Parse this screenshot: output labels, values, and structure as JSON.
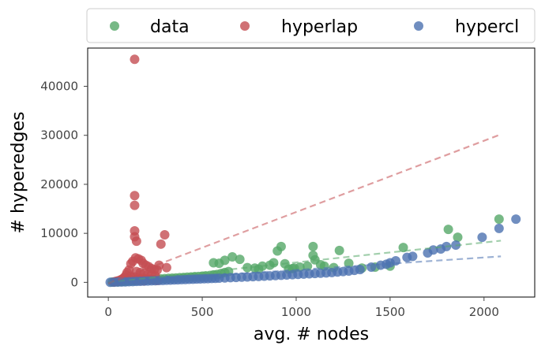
{
  "chart_data": {
    "type": "scatter",
    "xlabel": "avg. # nodes",
    "ylabel": "# hyperedges",
    "xlim": [
      -110,
      2270
    ],
    "ylim": [
      -3000,
      47800
    ],
    "xticks": [
      0,
      500,
      1000,
      1500,
      2000
    ],
    "yticks": [
      0,
      10000,
      20000,
      30000,
      40000
    ],
    "grid": false,
    "legend": {
      "placement": "top, outside plot",
      "columns": 3
    },
    "series": [
      {
        "name": "data",
        "color": "#55a868",
        "trend": [
          [
            0,
            0
          ],
          [
            2090,
            8500
          ]
        ],
        "points": [
          [
            20,
            50
          ],
          [
            35,
            90
          ],
          [
            50,
            120
          ],
          [
            60,
            150
          ],
          [
            75,
            180
          ],
          [
            90,
            220
          ],
          [
            105,
            260
          ],
          [
            120,
            300
          ],
          [
            135,
            320
          ],
          [
            150,
            380
          ],
          [
            165,
            420
          ],
          [
            180,
            460
          ],
          [
            195,
            500
          ],
          [
            210,
            540
          ],
          [
            225,
            600
          ],
          [
            240,
            620
          ],
          [
            260,
            680
          ],
          [
            280,
            700
          ],
          [
            300,
            760
          ],
          [
            320,
            820
          ],
          [
            340,
            850
          ],
          [
            360,
            900
          ],
          [
            380,
            950
          ],
          [
            400,
            1000
          ],
          [
            420,
            1050
          ],
          [
            440,
            1100
          ],
          [
            460,
            1150
          ],
          [
            480,
            1200
          ],
          [
            500,
            1250
          ],
          [
            520,
            1300
          ],
          [
            540,
            1400
          ],
          [
            560,
            1500
          ],
          [
            580,
            1600
          ],
          [
            600,
            1800
          ],
          [
            620,
            2000
          ],
          [
            640,
            2200
          ],
          [
            560,
            4000
          ],
          [
            590,
            3900
          ],
          [
            620,
            4500
          ],
          [
            660,
            5200
          ],
          [
            700,
            4700
          ],
          [
            740,
            3000
          ],
          [
            780,
            2900
          ],
          [
            800,
            2700
          ],
          [
            820,
            3300
          ],
          [
            860,
            3500
          ],
          [
            880,
            4000
          ],
          [
            900,
            6400
          ],
          [
            920,
            7300
          ],
          [
            940,
            3800
          ],
          [
            960,
            2700
          ],
          [
            990,
            2900
          ],
          [
            1020,
            3100
          ],
          [
            1060,
            3300
          ],
          [
            1090,
            5500
          ],
          [
            1090,
            7300
          ],
          [
            1100,
            4600
          ],
          [
            1130,
            3600
          ],
          [
            1150,
            3300
          ],
          [
            1230,
            6500
          ],
          [
            1280,
            3900
          ],
          [
            1350,
            2900
          ],
          [
            1570,
            7100
          ],
          [
            1810,
            10800
          ],
          [
            1860,
            9200
          ],
          [
            2080,
            12900
          ],
          [
            1500,
            3300
          ],
          [
            1420,
            3100
          ],
          [
            1200,
            3000
          ],
          [
            980,
            2800
          ]
        ]
      },
      {
        "name": "hyperlap",
        "color": "#c44e52",
        "trend": [
          [
            0,
            -200
          ],
          [
            2090,
            30200
          ]
        ],
        "points": [
          [
            140,
            45500
          ],
          [
            140,
            17700
          ],
          [
            140,
            15700
          ],
          [
            140,
            10500
          ],
          [
            140,
            9300
          ],
          [
            150,
            8400
          ],
          [
            300,
            9700
          ],
          [
            280,
            7800
          ],
          [
            310,
            3000
          ],
          [
            270,
            3500
          ],
          [
            120,
            3800
          ],
          [
            130,
            4300
          ],
          [
            145,
            5000
          ],
          [
            160,
            4800
          ],
          [
            175,
            4500
          ],
          [
            185,
            3900
          ],
          [
            200,
            3500
          ],
          [
            215,
            3200
          ],
          [
            230,
            2800
          ],
          [
            245,
            2600
          ],
          [
            260,
            2500
          ],
          [
            110,
            2500
          ],
          [
            100,
            2000
          ],
          [
            95,
            1500
          ],
          [
            85,
            1000
          ],
          [
            80,
            800
          ],
          [
            70,
            600
          ],
          [
            60,
            400
          ],
          [
            50,
            300
          ],
          [
            40,
            200
          ],
          [
            30,
            100
          ],
          [
            150,
            2200
          ],
          [
            170,
            2000
          ],
          [
            190,
            1800
          ],
          [
            210,
            1600
          ],
          [
            230,
            1500
          ],
          [
            250,
            1300
          ],
          [
            120,
            1200
          ],
          [
            140,
            1100
          ],
          [
            160,
            900
          ],
          [
            180,
            800
          ],
          [
            200,
            700
          ],
          [
            220,
            600
          ],
          [
            240,
            500
          ],
          [
            260,
            400
          ],
          [
            110,
            700
          ],
          [
            130,
            600
          ],
          [
            150,
            500
          ],
          [
            170,
            400
          ],
          [
            190,
            300
          ]
        ]
      },
      {
        "name": "hypercl",
        "color": "#4c72b0",
        "trend": [
          [
            0,
            0
          ],
          [
            2090,
            5300
          ]
        ],
        "points": [
          [
            10,
            20
          ],
          [
            30,
            40
          ],
          [
            50,
            60
          ],
          [
            70,
            80
          ],
          [
            90,
            100
          ],
          [
            110,
            130
          ],
          [
            130,
            160
          ],
          [
            150,
            190
          ],
          [
            170,
            220
          ],
          [
            190,
            250
          ],
          [
            210,
            280
          ],
          [
            230,
            310
          ],
          [
            250,
            340
          ],
          [
            270,
            370
          ],
          [
            290,
            400
          ],
          [
            310,
            430
          ],
          [
            330,
            460
          ],
          [
            350,
            490
          ],
          [
            370,
            520
          ],
          [
            390,
            550
          ],
          [
            410,
            580
          ],
          [
            430,
            610
          ],
          [
            450,
            640
          ],
          [
            470,
            670
          ],
          [
            490,
            700
          ],
          [
            510,
            730
          ],
          [
            530,
            760
          ],
          [
            550,
            790
          ],
          [
            570,
            820
          ],
          [
            590,
            850
          ],
          [
            620,
            900
          ],
          [
            650,
            950
          ],
          [
            680,
            1000
          ],
          [
            710,
            1050
          ],
          [
            740,
            1100
          ],
          [
            770,
            1150
          ],
          [
            800,
            1200
          ],
          [
            830,
            1260
          ],
          [
            860,
            1320
          ],
          [
            890,
            1380
          ],
          [
            920,
            1440
          ],
          [
            950,
            1500
          ],
          [
            980,
            1560
          ],
          [
            1010,
            1620
          ],
          [
            1040,
            1680
          ],
          [
            1070,
            1740
          ],
          [
            1100,
            1800
          ],
          [
            1130,
            1860
          ],
          [
            1160,
            1920
          ],
          [
            1190,
            2000
          ],
          [
            1220,
            2100
          ],
          [
            1250,
            2200
          ],
          [
            1280,
            2300
          ],
          [
            1310,
            2450
          ],
          [
            1340,
            2600
          ],
          [
            1400,
            3100
          ],
          [
            1450,
            3500
          ],
          [
            1500,
            4000
          ],
          [
            1530,
            4400
          ],
          [
            1590,
            5100
          ],
          [
            1620,
            5300
          ],
          [
            1700,
            6000
          ],
          [
            1730,
            6600
          ],
          [
            1770,
            6800
          ],
          [
            1800,
            7300
          ],
          [
            1850,
            7600
          ],
          [
            1990,
            9200
          ],
          [
            2080,
            11000
          ],
          [
            2170,
            12900
          ],
          [
            1480,
            3700
          ]
        ]
      }
    ]
  }
}
